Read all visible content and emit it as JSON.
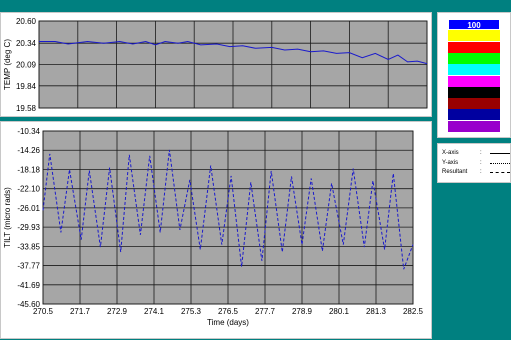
{
  "chart_data": [
    {
      "type": "line",
      "title": "",
      "ylabel": "TEMP (deg C)",
      "xlabel": "",
      "ylim": [
        19.58,
        20.6
      ],
      "xlim": [
        270.5,
        282.5
      ],
      "y_ticks": [
        "20.60",
        "20.34",
        "20.09",
        "19.84",
        "19.58"
      ],
      "grid": true,
      "series": [
        {
          "color": "#1a1acc",
          "style": "solid",
          "x": [
            270.5,
            271.0,
            271.4,
            272.0,
            272.5,
            273.0,
            273.4,
            273.8,
            274.1,
            274.4,
            274.8,
            275.1,
            275.5,
            276.0,
            276.4,
            276.8,
            277.2,
            277.7,
            278.1,
            278.5,
            278.9,
            279.3,
            279.7,
            280.1,
            280.5,
            280.9,
            281.3,
            281.6,
            281.9,
            282.2,
            282.5
          ],
          "y": [
            20.36,
            20.36,
            20.33,
            20.36,
            20.34,
            20.36,
            20.33,
            20.36,
            20.32,
            20.36,
            20.34,
            20.36,
            20.32,
            20.33,
            20.3,
            20.31,
            20.28,
            20.29,
            20.26,
            20.27,
            20.24,
            20.25,
            20.22,
            20.23,
            20.17,
            20.22,
            20.15,
            20.2,
            20.12,
            20.13,
            20.1
          ]
        }
      ]
    },
    {
      "type": "line",
      "title": "",
      "ylabel": "TILT (micro rads)",
      "xlabel": "Time (days)",
      "ylim": [
        -45.6,
        -10.34
      ],
      "xlim": [
        270.5,
        282.5
      ],
      "y_ticks": [
        "-10.34",
        "-14.26",
        "-18.18",
        "-22.10",
        "-26.01",
        "-29.93",
        "-33.85",
        "-37.77",
        "-41.69",
        "-45.60"
      ],
      "x_ticks": [
        "270.5",
        "271.7",
        "272.9",
        "274.1",
        "275.3",
        "276.5",
        "277.7",
        "278.9",
        "280.1",
        "281.3",
        "282.5"
      ],
      "grid": true,
      "series": [
        {
          "color": "#1a1acc",
          "style": "dashed",
          "x": [
            270.5,
            270.72,
            271.08,
            271.36,
            271.74,
            272.0,
            272.36,
            272.66,
            273.02,
            273.3,
            273.66,
            273.96,
            274.3,
            274.6,
            274.94,
            275.26,
            275.6,
            275.94,
            276.3,
            276.6,
            276.94,
            277.24,
            277.6,
            277.9,
            278.26,
            278.56,
            278.9,
            279.2,
            279.56,
            279.86,
            280.24,
            280.56,
            280.92,
            281.2,
            281.58,
            281.86,
            282.2,
            282.5
          ],
          "y": [
            -26.5,
            -15.0,
            -31.0,
            -18.2,
            -32.5,
            -18.4,
            -34.0,
            -17.8,
            -35.0,
            -15.2,
            -31.5,
            -15.4,
            -31.0,
            -14.2,
            -30.5,
            -20.3,
            -34.5,
            -17.4,
            -33.5,
            -19.5,
            -38.0,
            -20.8,
            -36.8,
            -18.5,
            -35.0,
            -19.6,
            -33.5,
            -20.0,
            -34.8,
            -21.0,
            -33.5,
            -18.0,
            -34.0,
            -20.5,
            -34.5,
            -19.0,
            -38.5,
            -33.5
          ]
        }
      ]
    }
  ],
  "color_swatches": [
    {
      "color": "#0000ff",
      "label": "100"
    },
    {
      "color": "#ffff00",
      "label": ""
    },
    {
      "color": "#ff0000",
      "label": ""
    },
    {
      "color": "#00ff00",
      "label": ""
    },
    {
      "color": "#00ffff",
      "label": ""
    },
    {
      "color": "#ff00ff",
      "label": ""
    },
    {
      "color": "#000000",
      "label": ""
    },
    {
      "color": "#990000",
      "label": ""
    },
    {
      "color": "#0000a0",
      "label": ""
    },
    {
      "color": "#9900cc",
      "label": ""
    }
  ],
  "legend": [
    {
      "label": "X-axis",
      "sep": ":",
      "style": "solid"
    },
    {
      "label": "Y-axis",
      "sep": ":",
      "style": "dotted"
    },
    {
      "label": "Resultant",
      "sep": ":",
      "style": "dashdot"
    }
  ]
}
